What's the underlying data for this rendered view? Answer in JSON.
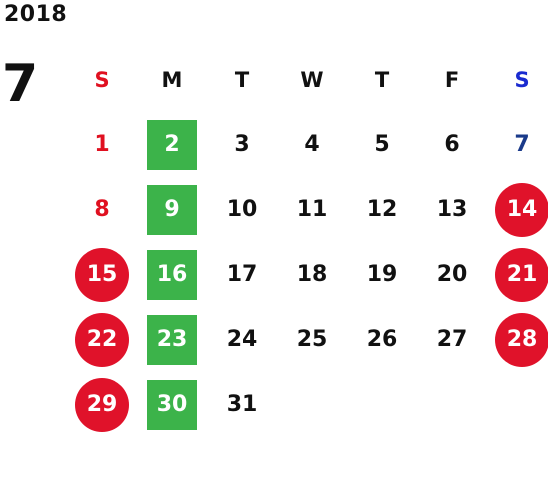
{
  "year": "2018",
  "month": "7",
  "colors": {
    "sunday": "#e01020",
    "saturday_header": "#1a2bd0",
    "saturday_plain": "#1a3a8a",
    "green_badge": "#3cb34a",
    "red_badge": "#e0122a"
  },
  "weekdays": [
    "S",
    "M",
    "T",
    "W",
    "T",
    "F",
    "S"
  ],
  "weeks": [
    [
      {
        "day": "1",
        "style": "sun"
      },
      {
        "day": "2",
        "style": "green"
      },
      {
        "day": "3",
        "style": "plain"
      },
      {
        "day": "4",
        "style": "plain"
      },
      {
        "day": "5",
        "style": "plain"
      },
      {
        "day": "6",
        "style": "plain"
      },
      {
        "day": "7",
        "style": "sat"
      }
    ],
    [
      {
        "day": "8",
        "style": "sun"
      },
      {
        "day": "9",
        "style": "green"
      },
      {
        "day": "10",
        "style": "plain"
      },
      {
        "day": "11",
        "style": "plain"
      },
      {
        "day": "12",
        "style": "plain"
      },
      {
        "day": "13",
        "style": "plain"
      },
      {
        "day": "14",
        "style": "red"
      }
    ],
    [
      {
        "day": "15",
        "style": "red"
      },
      {
        "day": "16",
        "style": "green"
      },
      {
        "day": "17",
        "style": "plain"
      },
      {
        "day": "18",
        "style": "plain"
      },
      {
        "day": "19",
        "style": "plain"
      },
      {
        "day": "20",
        "style": "plain"
      },
      {
        "day": "21",
        "style": "red"
      }
    ],
    [
      {
        "day": "22",
        "style": "red"
      },
      {
        "day": "23",
        "style": "green"
      },
      {
        "day": "24",
        "style": "plain"
      },
      {
        "day": "25",
        "style": "plain"
      },
      {
        "day": "26",
        "style": "plain"
      },
      {
        "day": "27",
        "style": "plain"
      },
      {
        "day": "28",
        "style": "red"
      }
    ],
    [
      {
        "day": "29",
        "style": "red"
      },
      {
        "day": "30",
        "style": "green"
      },
      {
        "day": "31",
        "style": "plain"
      },
      {
        "day": "",
        "style": "empty"
      },
      {
        "day": "",
        "style": "empty"
      },
      {
        "day": "",
        "style": "empty"
      },
      {
        "day": "",
        "style": "empty"
      }
    ]
  ]
}
